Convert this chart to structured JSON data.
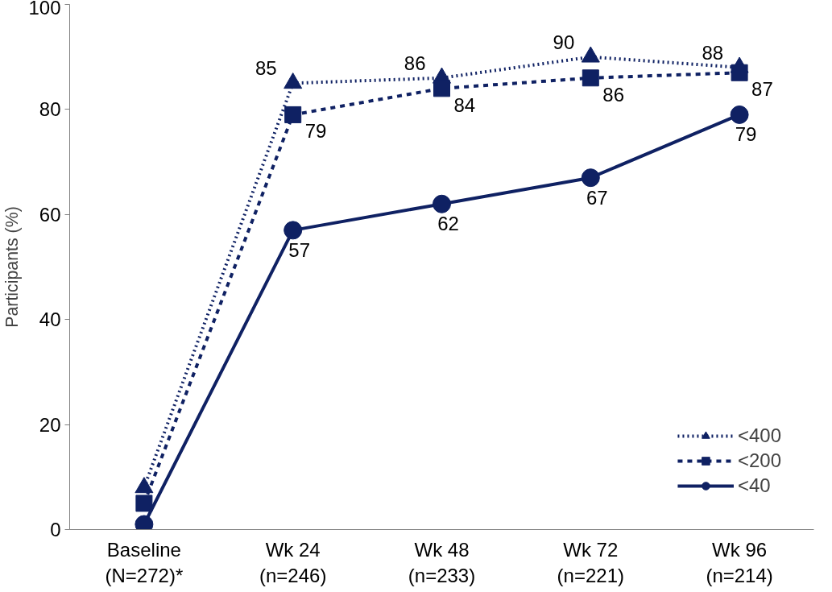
{
  "chart_data": {
    "type": "line",
    "ylabel": "Participants (%)",
    "categories": [
      "Baseline\n(N=272)*",
      "Wk 24\n(n=246)",
      "Wk 48\n(n=233)",
      "Wk 72\n(n=221)",
      "Wk 96\n(n=214)"
    ],
    "ylim": [
      0,
      100
    ],
    "yticks": [
      0,
      20,
      40,
      60,
      80,
      100
    ],
    "grid": false,
    "legend": "bottom right",
    "series": [
      {
        "name": "<400",
        "color": "#0f2163",
        "values": [
          8,
          85,
          86,
          90,
          88
        ],
        "value_labels": [
          null,
          "85",
          "86",
          "90",
          "88"
        ],
        "marker": "triangle",
        "line_style": "dotted"
      },
      {
        "name": "<200",
        "color": "#0f2163",
        "values": [
          5,
          79,
          84,
          86,
          87
        ],
        "value_labels": [
          null,
          "79",
          "84",
          "86",
          "87"
        ],
        "marker": "square",
        "line_style": "dashed"
      },
      {
        "name": "<40",
        "color": "#0f2163",
        "values": [
          1,
          57,
          62,
          67,
          79
        ],
        "value_labels": [
          null,
          "57",
          "62",
          "67",
          "79"
        ],
        "marker": "circle",
        "line_style": "solid"
      }
    ]
  }
}
